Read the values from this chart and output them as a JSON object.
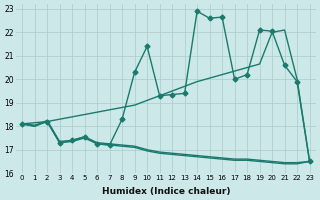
{
  "xlabel": "Humidex (Indice chaleur)",
  "bg_color": "#cce8e8",
  "line_color": "#1a7a6e",
  "grid_color": "#aacccc",
  "xlim": [
    -0.5,
    23.5
  ],
  "ylim": [
    16,
    23.2
  ],
  "xticks": [
    0,
    1,
    2,
    3,
    4,
    5,
    6,
    7,
    8,
    9,
    10,
    11,
    12,
    13,
    14,
    15,
    16,
    17,
    18,
    19,
    20,
    21,
    22,
    23
  ],
  "yticks": [
    16,
    17,
    18,
    19,
    20,
    21,
    22,
    23
  ],
  "series": [
    {
      "x": [
        0,
        1,
        2,
        3,
        4,
        5,
        6,
        7,
        8,
        9,
        10,
        11,
        12,
        13,
        14,
        15,
        16,
        17,
        18,
        19,
        20,
        21,
        22,
        23
      ],
      "y": [
        18.1,
        18.0,
        18.2,
        17.3,
        17.35,
        17.5,
        17.25,
        17.2,
        17.15,
        17.1,
        16.95,
        16.85,
        16.8,
        16.75,
        16.7,
        16.65,
        16.6,
        16.55,
        16.55,
        16.5,
        16.45,
        16.4,
        16.4,
        16.5
      ],
      "marker": null,
      "lw": 1.0
    },
    {
      "x": [
        0,
        1,
        2,
        3,
        4,
        5,
        6,
        7,
        8,
        9,
        10,
        11,
        12,
        13,
        14,
        15,
        16,
        17,
        18,
        19,
        20,
        21,
        22,
        23
      ],
      "y": [
        18.1,
        18.0,
        18.25,
        17.35,
        17.4,
        17.55,
        17.3,
        17.25,
        17.2,
        17.15,
        17.0,
        16.9,
        16.85,
        16.8,
        16.75,
        16.7,
        16.65,
        16.6,
        16.6,
        16.55,
        16.5,
        16.45,
        16.45,
        16.5
      ],
      "marker": null,
      "lw": 1.0
    },
    {
      "x": [
        0,
        1,
        2,
        3,
        4,
        5,
        6,
        7,
        8,
        9,
        10,
        11,
        12,
        13,
        14,
        15,
        16,
        17,
        18,
        19,
        20,
        21,
        22,
        23
      ],
      "y": [
        18.1,
        18.05,
        18.2,
        18.3,
        18.4,
        18.5,
        18.6,
        18.7,
        18.8,
        18.9,
        19.1,
        19.3,
        19.5,
        19.7,
        19.9,
        20.05,
        20.2,
        20.35,
        20.5,
        20.65,
        22.0,
        22.1,
        20.0,
        16.5
      ],
      "marker": null,
      "lw": 1.0
    },
    {
      "x": [
        0,
        2,
        3,
        4,
        5,
        6,
        7,
        8,
        9,
        10,
        11,
        12,
        13,
        14,
        15,
        16,
        17,
        18,
        19,
        20,
        21,
        22,
        23
      ],
      "y": [
        18.1,
        18.2,
        17.3,
        17.4,
        17.55,
        17.25,
        17.2,
        18.3,
        20.3,
        21.4,
        19.3,
        19.35,
        19.4,
        22.9,
        22.6,
        22.65,
        20.0,
        20.2,
        22.1,
        22.05,
        20.6,
        19.9,
        16.5
      ],
      "marker": "D",
      "lw": 1.0,
      "ms": 2.5
    }
  ]
}
